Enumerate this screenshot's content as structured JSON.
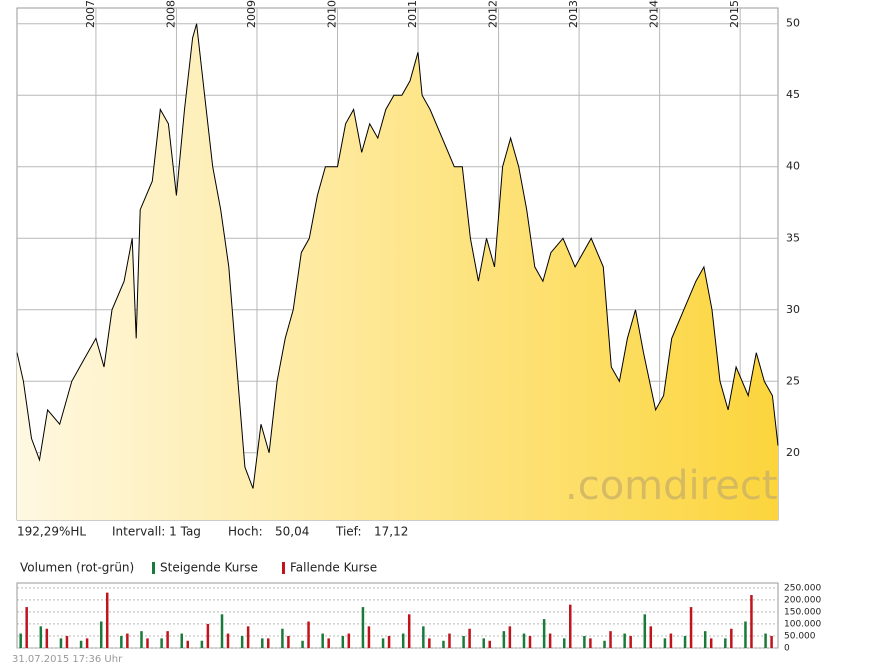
{
  "chart_data": [
    {
      "type": "area",
      "color": "#000000",
      "fill_colors": [
        "#fff8e2",
        "#fcd53c"
      ],
      "x": [
        2006.02,
        2006.1,
        2006.2,
        2006.3,
        2006.4,
        2006.55,
        2006.7,
        2006.85,
        2007.0,
        2007.1,
        2007.2,
        2007.35,
        2007.45,
        2007.5,
        2007.55,
        2007.7,
        2007.8,
        2007.9,
        2008.0,
        2008.1,
        2008.2,
        2008.25,
        2008.35,
        2008.45,
        2008.55,
        2008.65,
        2008.75,
        2008.85,
        2008.95,
        2009.05,
        2009.15,
        2009.25,
        2009.35,
        2009.45,
        2009.55,
        2009.65,
        2009.75,
        2009.85,
        2010.0,
        2010.1,
        2010.2,
        2010.3,
        2010.4,
        2010.5,
        2010.6,
        2010.7,
        2010.8,
        2010.9,
        2011.0,
        2011.05,
        2011.15,
        2011.3,
        2011.45,
        2011.55,
        2011.65,
        2011.75,
        2011.85,
        2011.95,
        2012.05,
        2012.15,
        2012.25,
        2012.35,
        2012.45,
        2012.55,
        2012.65,
        2012.8,
        2012.95,
        2013.05,
        2013.15,
        2013.3,
        2013.4,
        2013.5,
        2013.6,
        2013.7,
        2013.8,
        2013.95,
        2014.05,
        2014.15,
        2014.3,
        2014.45,
        2014.55,
        2014.65,
        2014.75,
        2014.85,
        2014.95,
        2015.1,
        2015.2,
        2015.3,
        2015.4,
        2015.47
      ],
      "values": [
        27,
        25,
        21,
        19.5,
        23,
        22,
        25,
        26.5,
        28,
        26,
        30,
        32,
        35,
        28,
        37,
        39,
        44,
        43,
        38,
        44,
        49,
        50,
        45,
        40,
        37,
        33,
        26,
        19,
        17.5,
        22,
        20,
        25,
        28,
        30,
        34,
        35,
        38,
        40,
        40,
        43,
        44,
        41,
        43,
        42,
        44,
        45,
        45,
        46,
        48,
        45,
        44,
        42,
        40,
        40,
        35,
        32,
        35,
        33,
        40,
        42,
        40,
        37,
        33,
        32,
        34,
        35,
        33,
        34,
        35,
        33,
        26,
        25,
        28,
        30,
        27,
        23,
        24,
        28,
        30,
        32,
        33,
        30,
        25,
        23,
        26,
        24,
        27,
        25,
        24,
        20.5
      ],
      "xlim": [
        2006.02,
        2015.47
      ],
      "xticks": [
        2007,
        2008,
        2009,
        2010,
        2011,
        2012,
        2013,
        2014,
        2015
      ],
      "ylim": [
        15.3,
        51.1
      ],
      "yticks": [
        20,
        25,
        30,
        35,
        40,
        45,
        50
      ],
      "grid": true
    },
    {
      "type": "bar",
      "title": "Volumen (rot-grün)",
      "x": [
        2006.1,
        2006.35,
        2006.6,
        2006.85,
        2007.1,
        2007.35,
        2007.6,
        2007.85,
        2008.1,
        2008.35,
        2008.6,
        2008.85,
        2009.1,
        2009.35,
        2009.6,
        2009.85,
        2010.1,
        2010.35,
        2010.6,
        2010.85,
        2011.1,
        2011.35,
        2011.6,
        2011.85,
        2012.1,
        2012.35,
        2012.6,
        2012.85,
        2013.1,
        2013.35,
        2013.6,
        2013.85,
        2014.1,
        2014.35,
        2014.6,
        2014.85,
        2015.1,
        2015.35
      ],
      "series": [
        {
          "name": "Steigende Kurse",
          "color": "#1a7a3a",
          "values": [
            60000,
            90000,
            40000,
            30000,
            110000,
            50000,
            70000,
            40000,
            60000,
            30000,
            140000,
            50000,
            40000,
            80000,
            30000,
            60000,
            50000,
            170000,
            40000,
            60000,
            90000,
            30000,
            50000,
            40000,
            70000,
            60000,
            120000,
            40000,
            50000,
            30000,
            60000,
            140000,
            40000,
            50000,
            70000,
            40000,
            110000,
            60000
          ]
        },
        {
          "name": "Fallende Kurse",
          "color": "#c0141c",
          "values": [
            170000,
            80000,
            50000,
            40000,
            230000,
            60000,
            40000,
            70000,
            30000,
            100000,
            60000,
            90000,
            40000,
            50000,
            110000,
            40000,
            60000,
            90000,
            50000,
            140000,
            40000,
            60000,
            80000,
            30000,
            90000,
            50000,
            60000,
            180000,
            40000,
            70000,
            50000,
            90000,
            60000,
            170000,
            40000,
            80000,
            220000,
            50000
          ]
        }
      ],
      "xlim": [
        2006.02,
        2015.47
      ],
      "ylim": [
        0,
        270000
      ],
      "yticks": [
        0,
        {
          "value": 50000,
          "label": "50.000"
        },
        {
          "value": 100000,
          "label": "100.000"
        },
        {
          "value": 150000,
          "label": "150.000"
        },
        {
          "value": 200000,
          "label": "200.000"
        },
        {
          "value": 250000,
          "label": "250.000"
        }
      ],
      "grid": true
    }
  ],
  "stats": {
    "range": "192,29%HL",
    "interval": "Intervall: 1 Tag",
    "high_label": "Hoch:",
    "high": "50,04",
    "low_label": "Tief:",
    "low": "17,12"
  },
  "watermark": ".comdirect",
  "timestamp": "31.07.2015 17:36 Uhr"
}
